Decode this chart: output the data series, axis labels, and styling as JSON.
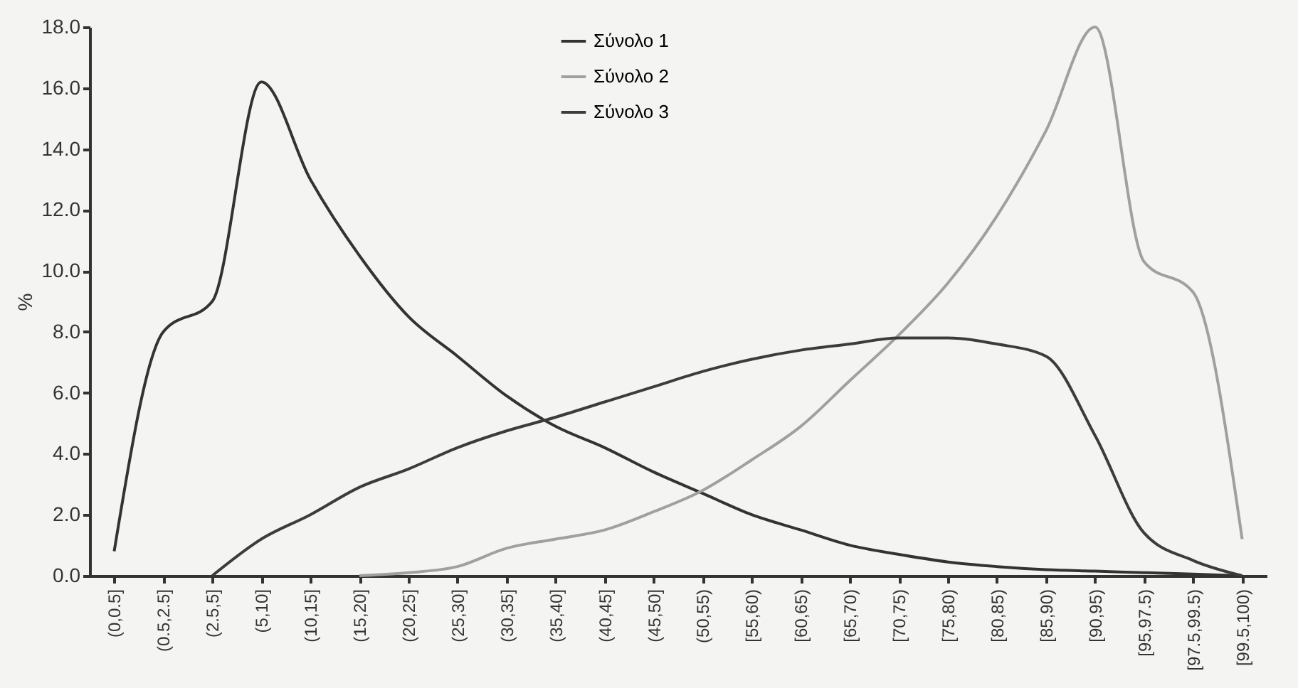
{
  "chart_data": {
    "type": "line",
    "ylabel": "%",
    "categories": [
      "(0,0.5]",
      "(0.5,2.5]",
      "(2.5,5]",
      "(5,10]",
      "(10,15]",
      "(15,20]",
      "(20,25]",
      "(25,30]",
      "(30,35]",
      "(35,40]",
      "(40,45]",
      "(45,50]",
      "(50,55)",
      "[55,60)",
      "[60,65)",
      "[65,70)",
      "[70,75)",
      "[75,80)",
      "[80,85)",
      "[85,90)",
      "[90,95)",
      "[95,97.5)",
      "[97.5,99.5)",
      "[99.5,100)"
    ],
    "series": [
      {
        "name": "Σύνολο 1",
        "color": "#333333",
        "values": [
          0.8,
          8.0,
          9.0,
          16.2,
          13.0,
          10.5,
          8.5,
          7.2,
          5.9,
          4.9,
          4.2,
          3.4,
          2.7,
          2.0,
          1.5,
          1.0,
          0.7,
          0.45,
          0.3,
          0.2,
          0.15,
          0.1,
          0.05,
          0.0
        ]
      },
      {
        "name": "Σύνολο 2",
        "color": "#a0a0a0",
        "values": [
          null,
          null,
          null,
          null,
          null,
          0.0,
          0.1,
          0.3,
          0.9,
          1.2,
          1.5,
          2.1,
          2.8,
          3.8,
          4.9,
          6.4,
          7.9,
          9.6,
          11.8,
          14.6,
          18.0,
          10.3,
          9.3,
          1.2
        ]
      },
      {
        "name": "Σύνολο 3",
        "color": "#3c3c3c",
        "values": [
          null,
          null,
          0.0,
          1.2,
          2.0,
          2.9,
          3.5,
          4.2,
          4.75,
          5.2,
          5.7,
          6.2,
          6.7,
          7.1,
          7.4,
          7.6,
          7.8,
          7.8,
          7.6,
          7.2,
          4.6,
          1.4,
          0.5,
          0.0
        ]
      }
    ],
    "ylim": [
      0,
      18
    ],
    "yticks": [
      {
        "value": 0,
        "label": "0.0"
      },
      {
        "value": 2,
        "label": "2.0"
      },
      {
        "value": 4,
        "label": "4.0"
      },
      {
        "value": 6,
        "label": "6.0"
      },
      {
        "value": 8,
        "label": "8.0"
      },
      {
        "value": 10,
        "label": "10.0"
      },
      {
        "value": 12,
        "label": "12.0"
      },
      {
        "value": 14,
        "label": "14.0"
      },
      {
        "value": 16,
        "label": "16.0"
      },
      {
        "value": 18,
        "label": "18.0"
      }
    ],
    "legend": "top",
    "grid": false,
    "line_style": "solid"
  }
}
